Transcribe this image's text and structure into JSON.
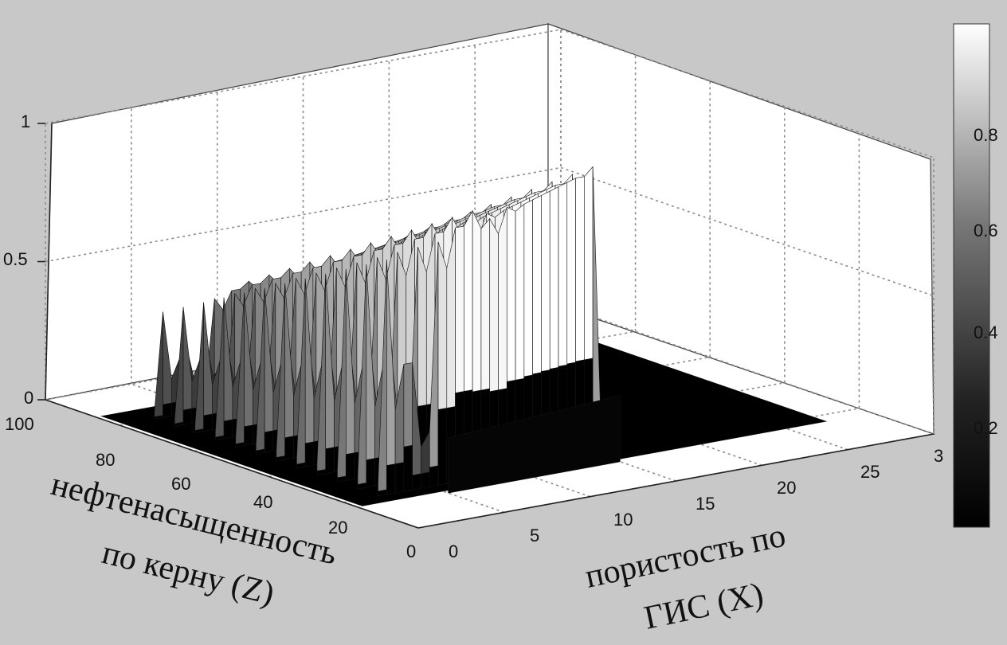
{
  "chart_data": {
    "type": "surface",
    "title": "",
    "xlabel_line1": "пористость по",
    "xlabel_line2": "ГИС (X)",
    "zlabel_line1": "нефтенасыщенность",
    "zlabel_line2": "по керну (Z)",
    "ylabel": "",
    "xlim": [
      0,
      30
    ],
    "zlim": [
      0,
      100
    ],
    "ylim": [
      0,
      1
    ],
    "x_ticks": [
      "0",
      "5",
      "10",
      "15",
      "20",
      "25",
      "3"
    ],
    "z_ticks": [
      "0",
      "20",
      "40",
      "60",
      "80",
      "100"
    ],
    "y_ticks": [
      "0",
      "0.5",
      "1"
    ],
    "colorbar": {
      "colormap": "gray",
      "range": [
        0,
        0.95
      ],
      "ticks": [
        "0.2",
        "0.4",
        "0.6",
        "0.8"
      ]
    },
    "surface_profile": {
      "x": [
        2.0,
        2.5,
        3.0,
        3.5,
        4.0,
        4.5,
        5.0,
        5.5,
        6.0,
        6.5,
        7.0,
        7.5,
        8.0,
        8.5,
        9.0,
        9.5,
        10.0,
        10.5,
        11.0,
        11.5,
        12.0,
        12.5,
        13.0,
        13.5,
        14.0,
        14.5,
        15.0
      ],
      "peak_y": [
        0.05,
        0.85,
        0.3,
        0.46,
        0.46,
        0.15,
        0.2,
        0.88,
        0.78,
        0.92,
        0.92,
        0.97,
        0.9,
        0.93,
        0.87,
        0.96,
        0.94,
        0.96,
        0.97,
        0.98,
        0.99,
        1.0,
        1.01,
        1.02,
        1.02,
        1.05,
        0.05
      ],
      "z_range": [
        20,
        80
      ],
      "base_footprint": {
        "x": [
          0,
          27
        ],
        "z": [
          15,
          85
        ]
      }
    }
  }
}
